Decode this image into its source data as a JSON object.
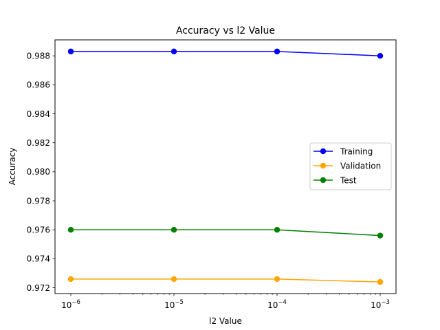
{
  "chart_data": {
    "type": "line",
    "title": "Accuracy vs l2 Value",
    "xlabel": "l2 Value",
    "ylabel": "Accuracy",
    "x_scale": "log",
    "x": [
      1e-06,
      1e-05,
      0.0001,
      0.001
    ],
    "x_tick_labels": [
      {
        "base": "10",
        "exp": "−6"
      },
      {
        "base": "10",
        "exp": "−5"
      },
      {
        "base": "10",
        "exp": "−4"
      },
      {
        "base": "10",
        "exp": "−3"
      }
    ],
    "y_ticks": [
      "0.972",
      "0.974",
      "0.976",
      "0.978",
      "0.980",
      "0.982",
      "0.984",
      "0.986",
      "0.988"
    ],
    "ylim": [
      0.9716,
      0.9891
    ],
    "grid": false,
    "legend_position": "center-right",
    "series": [
      {
        "name": "Training",
        "color": "#0000ff",
        "values": [
          0.9883,
          0.9883,
          0.9883,
          0.988
        ]
      },
      {
        "name": "Validation",
        "color": "#ffa500",
        "values": [
          0.9726,
          0.9726,
          0.9726,
          0.9724
        ]
      },
      {
        "name": "Test",
        "color": "#008000",
        "values": [
          0.976,
          0.976,
          0.976,
          0.9756
        ]
      }
    ]
  }
}
